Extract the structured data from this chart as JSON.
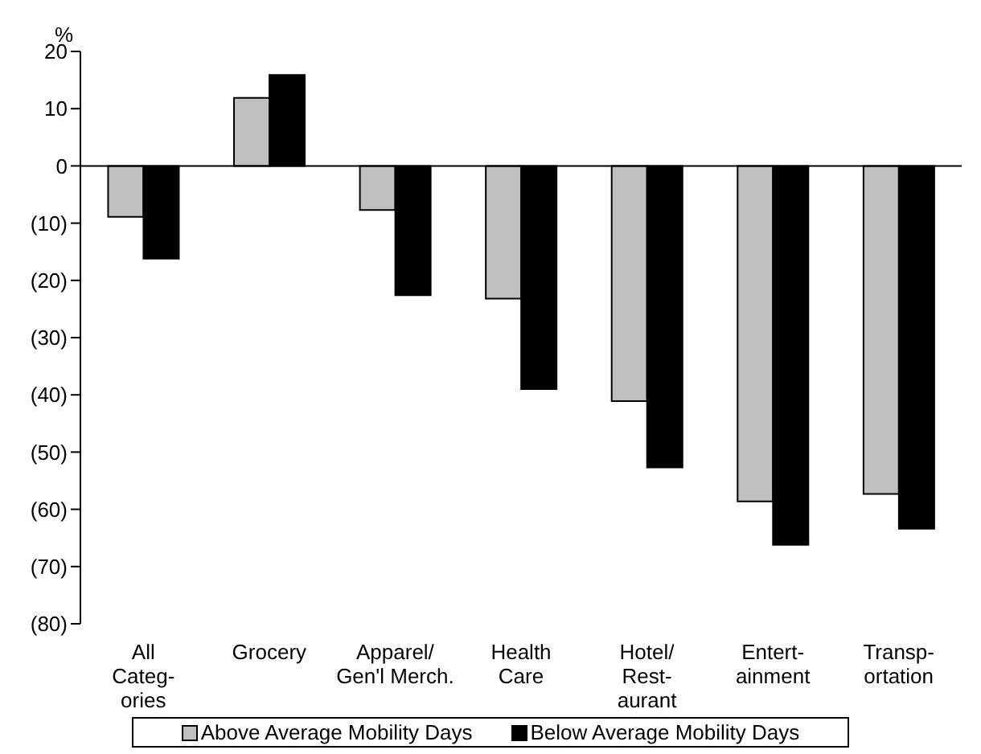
{
  "chart_data": {
    "type": "bar",
    "ylabel": "%",
    "categories": [
      "All\nCateg-\nories",
      "Grocery",
      "Apparel/\nGen'l Merch.",
      "Health\nCare",
      "Hotel/\nRest-\naurant",
      "Entert-\nainment",
      "Transp-\nortation"
    ],
    "series": [
      {
        "name": "Above Average Mobility Days",
        "color": "#c0c0c0",
        "values": [
          -8.9,
          11.9,
          -7.7,
          -23.2,
          -41.1,
          -58.6,
          -57.3
        ]
      },
      {
        "name": "Below Average Mobility Days",
        "color": "#000000",
        "values": [
          -16.2,
          15.9,
          -22.6,
          -39.0,
          -52.7,
          -66.2,
          -63.4
        ]
      }
    ],
    "ylim": [
      -80,
      20
    ],
    "yticks": [
      {
        "value": -80,
        "label": "(80)"
      },
      {
        "value": -70,
        "label": "(70)"
      },
      {
        "value": -60,
        "label": "(60)"
      },
      {
        "value": -50,
        "label": "(50)"
      },
      {
        "value": -40,
        "label": "(40)"
      },
      {
        "value": -30,
        "label": "(30)"
      },
      {
        "value": -20,
        "label": "(20)"
      },
      {
        "value": -10,
        "label": "(10)"
      },
      0,
      10,
      20
    ],
    "legend": "bottom"
  }
}
